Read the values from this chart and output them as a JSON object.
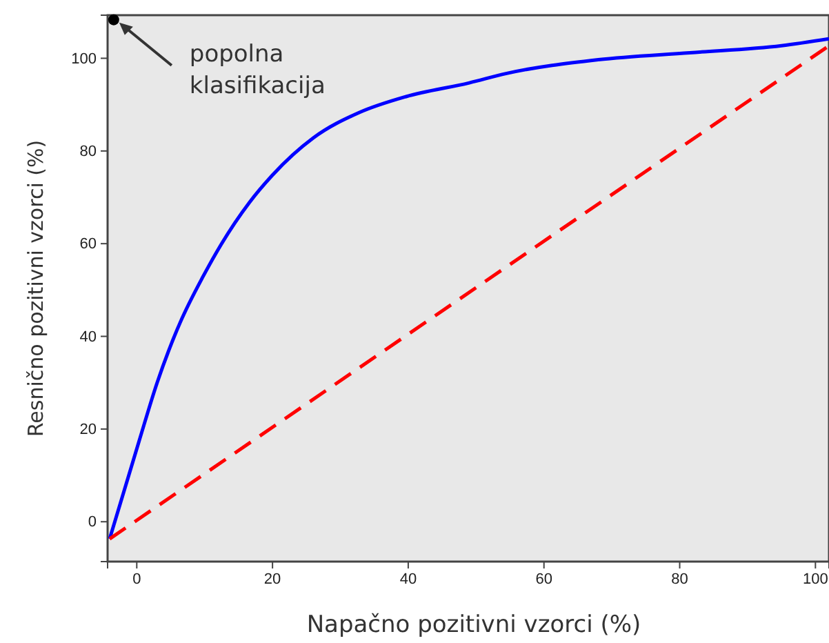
{
  "chart_data": {
    "type": "line",
    "xlabel": "Napačno pozitivni vzorci (%)",
    "ylabel": "Resnično pozitivni vzorci (%)",
    "xlim": [
      -4.3,
      102
    ],
    "ylim": [
      -8.6,
      109.3
    ],
    "xticks": [
      0,
      20,
      40,
      60,
      80,
      100
    ],
    "yticks": [
      0,
      20,
      40,
      60,
      80,
      100
    ],
    "grid": false,
    "series": [
      {
        "color": "#0000ff",
        "line_style": "solid",
        "marker": "none",
        "x": [
          -4,
          0.3,
          3,
          6.4,
          9.8,
          12.5,
          16.6,
          20,
          26,
          32.8,
          39.6,
          49,
          54.4,
          68,
          81.5,
          95,
          102
        ],
        "values": [
          -3.7,
          17.2,
          30,
          43,
          53,
          60,
          68.9,
          74.8,
          82.8,
          88.3,
          91.7,
          94.7,
          96.7,
          99.7,
          101.2,
          102.7,
          104.2
        ]
      },
      {
        "type": "line",
        "color": "#ff0000",
        "line_style": "dashed",
        "marker": "none",
        "x": [
          -4,
          102
        ],
        "values": [
          -3.7,
          102.7
        ]
      },
      {
        "type": "scatter",
        "color": "#000000",
        "marker": "circle",
        "x": [
          -3.4
        ],
        "values": [
          108.3
        ]
      }
    ],
    "annotations": [
      "popolna klasifikacija"
    ]
  }
}
